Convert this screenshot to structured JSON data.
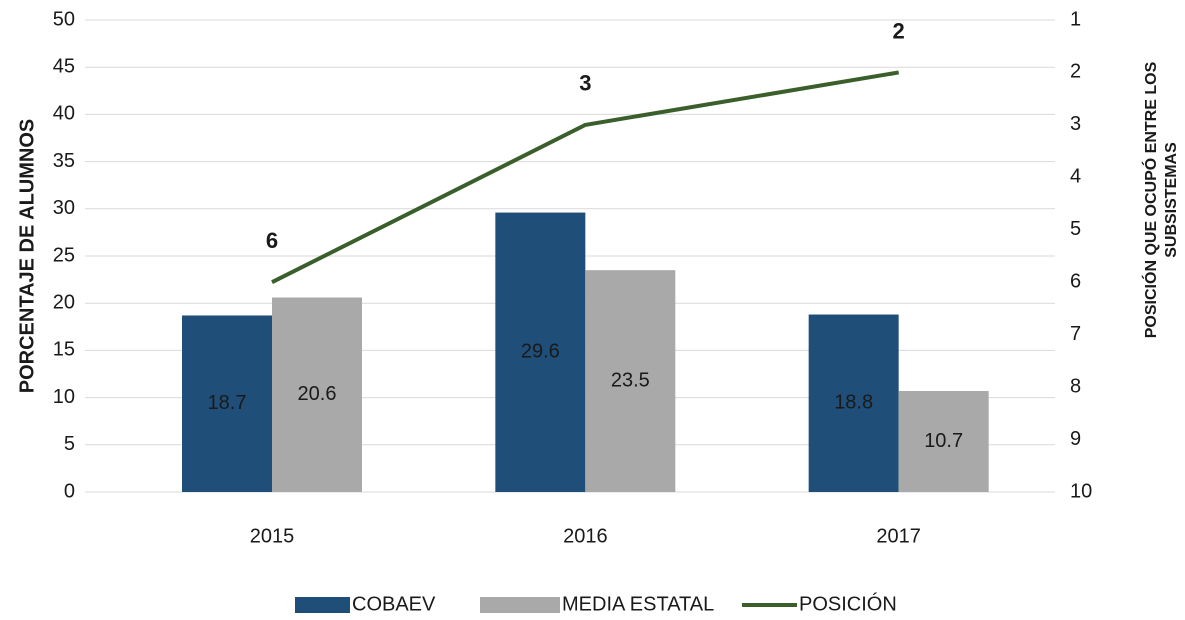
{
  "chart_data": {
    "type": "bar+line",
    "categories": [
      "2015",
      "2016",
      "2017"
    ],
    "series": [
      {
        "name": "COBAEV",
        "type": "bar",
        "color": "#1f4e79",
        "values": [
          18.7,
          29.6,
          18.8
        ]
      },
      {
        "name": "MEDIA ESTATAL",
        "type": "bar",
        "color": "#a9a9a9",
        "values": [
          20.6,
          23.5,
          10.7
        ]
      },
      {
        "name": "POSICIÓN",
        "type": "line",
        "axis": "y2",
        "color": "#3a5f2b",
        "values": [
          6,
          3,
          2
        ]
      }
    ],
    "ylabel": "PORCENTAJE DE ALUMNOS",
    "y2label": [
      "POSICIÓN QUE OCUPÓ ENTRE LOS",
      "SUBSISTEMAS"
    ],
    "ylim": [
      0,
      50
    ],
    "yticks": [
      0,
      5,
      10,
      15,
      20,
      25,
      30,
      35,
      40,
      45,
      50
    ],
    "y2lim": [
      10,
      1
    ],
    "y2ticks": [
      1,
      2,
      3,
      4,
      5,
      6,
      7,
      8,
      9,
      10
    ],
    "grid": true,
    "legend": "bottom"
  }
}
